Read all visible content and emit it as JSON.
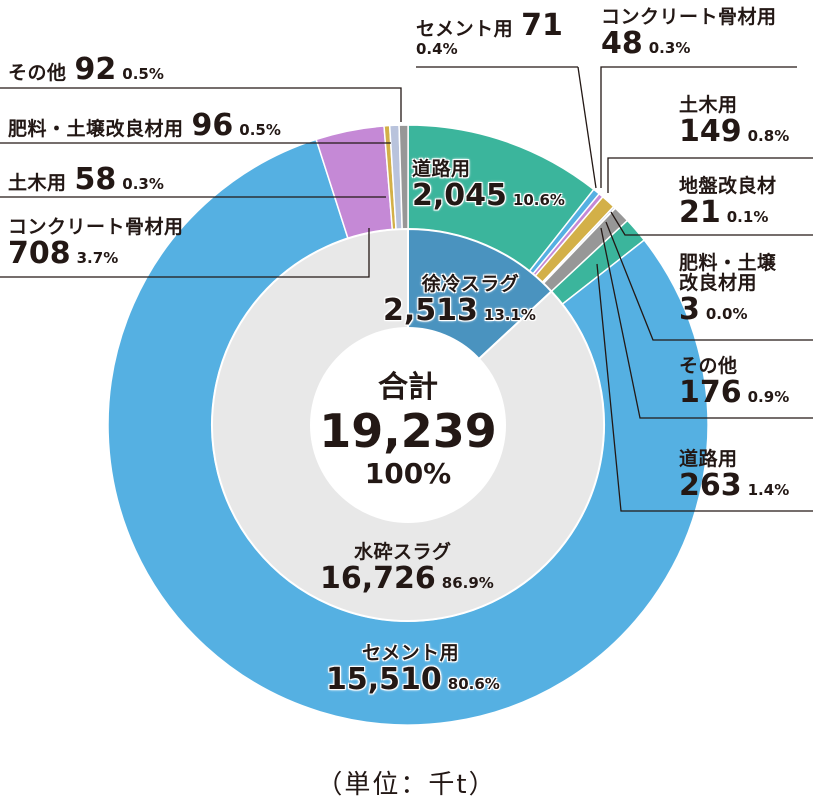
{
  "chart_data": {
    "type": "pie",
    "subtype": "nested-donut",
    "unit_label": "（単位：千t）",
    "total": {
      "label": "合計",
      "value": "19,239",
      "pct": "100%"
    },
    "inner": [
      {
        "name": "徐冷スラグ",
        "value": 2513,
        "value_label": "2,513",
        "pct": "13.1%",
        "color": "#4a93bf"
      },
      {
        "name": "水砕スラグ",
        "value": 16726,
        "value_label": "16,726",
        "pct": "86.9%",
        "color": "#e8e8e8"
      }
    ],
    "outer": [
      {
        "group": "徐冷スラグ",
        "name": "道路用",
        "value": 2045,
        "value_label": "2,045",
        "pct": "10.6%",
        "color": "#3bb59c"
      },
      {
        "group": "徐冷スラグ",
        "name": "セメント用",
        "value": 71,
        "value_label": "71",
        "pct": "0.4%",
        "color": "#55b0e2"
      },
      {
        "group": "徐冷スラグ",
        "name": "コンクリート骨材用",
        "value": 48,
        "value_label": "48",
        "pct": "0.3%",
        "color": "#c589d6"
      },
      {
        "group": "徐冷スラグ",
        "name": "土木用",
        "value": 149,
        "value_label": "149",
        "pct": "0.8%",
        "color": "#d3b048"
      },
      {
        "group": "徐冷スラグ",
        "name": "地盤改良材",
        "value": 21,
        "value_label": "21",
        "pct": "0.1%",
        "color": "#b9c3dc"
      },
      {
        "group": "徐冷スラグ",
        "name": "肥料・土壌改良材用",
        "value": 3,
        "value_label": "3",
        "pct": "0.0%",
        "color": "#b9c3dc"
      },
      {
        "group": "徐冷スラグ",
        "name": "その他",
        "value": 176,
        "value_label": "176",
        "pct": "0.9%",
        "color": "#979797"
      },
      {
        "group": "徐冷スラグ",
        "name": "道路用",
        "value": 263,
        "value_label": "263",
        "pct": "1.4%",
        "color": "#3bb59c"
      },
      {
        "group": "水砕スラグ",
        "name": "セメント用",
        "value": 15510,
        "value_label": "15,510",
        "pct": "80.6%",
        "color": "#55b0e2"
      },
      {
        "group": "水砕スラグ",
        "name": "コンクリート骨材用",
        "value": 708,
        "value_label": "708",
        "pct": "3.7%",
        "color": "#c589d6"
      },
      {
        "group": "水砕スラグ",
        "name": "土木用",
        "value": 58,
        "value_label": "58",
        "pct": "0.3%",
        "color": "#d3b048"
      },
      {
        "group": "水砕スラグ",
        "name": "肥料・土壌改良材用",
        "value": 96,
        "value_label": "96",
        "pct": "0.5%",
        "color": "#b9c3dc"
      },
      {
        "group": "水砕スラグ",
        "name": "その他",
        "value": 92,
        "value_label": "92",
        "pct": "0.5%",
        "color": "#979797"
      }
    ]
  },
  "labels": {
    "doro_main": {
      "name": "道路用",
      "value": "2,045",
      "pct": "10.6%"
    },
    "jorei": {
      "name": "徐冷スラグ",
      "value": "2,513",
      "pct": "13.1%"
    },
    "suisai": {
      "name": "水砕スラグ",
      "value": "16,726",
      "pct": "86.9%"
    },
    "cement_main": {
      "name": "セメント用",
      "value": "15,510",
      "pct": "80.6%"
    },
    "j_cement": {
      "name": "セメント用",
      "value": "71",
      "pct": "0.4%"
    },
    "j_concrete": {
      "name": "コンクリート骨材用",
      "value": "48",
      "pct": "0.3%"
    },
    "j_doboku": {
      "name": "土木用",
      "value": "149",
      "pct": "0.8%"
    },
    "j_jiban": {
      "name": "地盤改良材",
      "value": "21",
      "pct": "0.1%"
    },
    "j_hiryo": {
      "name1": "肥料・土壌",
      "name2": "改良材用",
      "value": "3",
      "pct": "0.0%"
    },
    "j_sonota": {
      "name": "その他",
      "value": "176",
      "pct": "0.9%"
    },
    "j_doro": {
      "name": "道路用",
      "value": "263",
      "pct": "1.4%"
    },
    "s_sonota": {
      "name": "その他",
      "value": "92",
      "pct": "0.5%"
    },
    "s_hiryo": {
      "name": "肥料・土壌改良材用",
      "value": "96",
      "pct": "0.5%"
    },
    "s_doboku": {
      "name": "土木用",
      "value": "58",
      "pct": "0.3%"
    },
    "s_concrete": {
      "name": "コンクリート骨材用",
      "value": "708",
      "pct": "3.7%"
    }
  }
}
